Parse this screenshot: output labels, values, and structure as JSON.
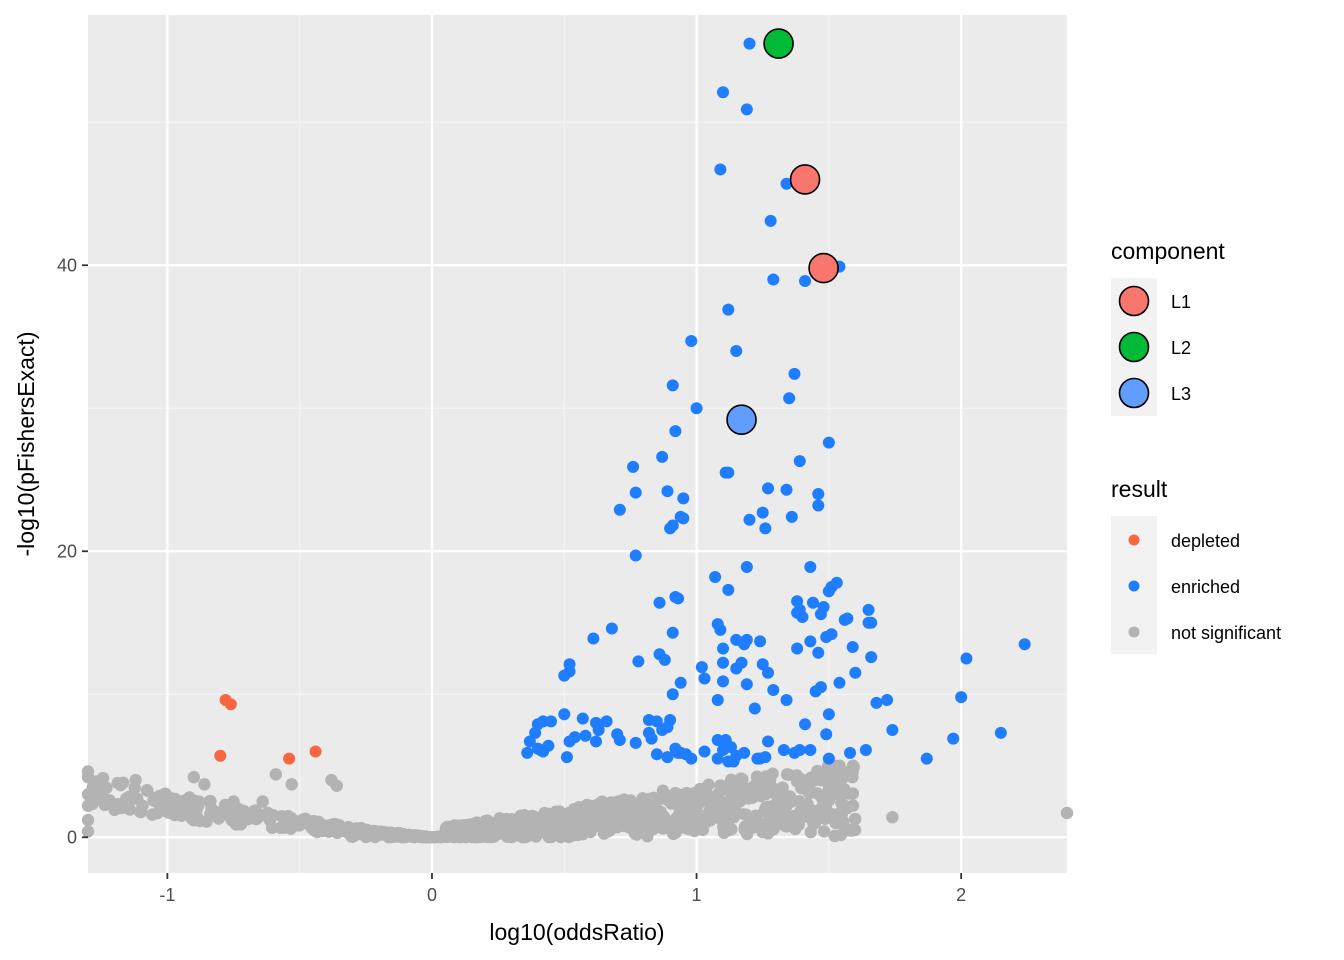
{
  "chart_data": {
    "type": "scatter",
    "title": "",
    "xlabel": "log10(oddsRatio)",
    "ylabel": "-log10(pFishersExact)",
    "xlim": [
      -1.3,
      2.4
    ],
    "ylim": [
      -2.5,
      57.5
    ],
    "x_ticks": [
      -1,
      0,
      1,
      2
    ],
    "x_tick_labels": [
      "-1",
      "0",
      "1",
      "2"
    ],
    "y_ticks": [
      0,
      20,
      40
    ],
    "y_tick_labels": [
      "0",
      "20",
      "40"
    ],
    "grid": true,
    "legends": [
      {
        "title": "component",
        "entries": [
          {
            "label": "L1",
            "color": "#F8766D"
          },
          {
            "label": "L2",
            "color": "#00BA38"
          },
          {
            "label": "L3",
            "color": "#619CFF"
          }
        ]
      },
      {
        "title": "result",
        "entries": [
          {
            "label": "depleted",
            "color": "#F8673F"
          },
          {
            "label": "enriched",
            "color": "#1F7EFF"
          },
          {
            "label": "not significant",
            "color": "#B3B3B3"
          }
        ]
      }
    ],
    "series": [
      {
        "name": "depleted",
        "color": "#F8673F",
        "points": [
          [
            -0.78,
            9.6
          ],
          [
            -0.76,
            9.3
          ],
          [
            -0.8,
            5.7
          ],
          [
            -0.54,
            5.5
          ],
          [
            -0.44,
            6.0
          ]
        ]
      },
      {
        "name": "enriched",
        "color": "#1F7EFF",
        "points": [
          [
            1.2,
            55.5
          ],
          [
            1.1,
            52.1
          ],
          [
            1.19,
            50.9
          ],
          [
            1.09,
            46.7
          ],
          [
            1.34,
            45.7
          ],
          [
            1.28,
            43.1
          ],
          [
            1.54,
            39.9
          ],
          [
            1.29,
            39.0
          ],
          [
            1.41,
            38.9
          ],
          [
            1.12,
            36.9
          ],
          [
            0.98,
            34.7
          ],
          [
            1.15,
            34.0
          ],
          [
            1.37,
            32.4
          ],
          [
            0.91,
            31.6
          ],
          [
            1.35,
            30.7
          ],
          [
            1.0,
            30.0
          ],
          [
            0.92,
            28.4
          ],
          [
            1.5,
            27.6
          ],
          [
            0.87,
            26.6
          ],
          [
            1.39,
            26.3
          ],
          [
            0.76,
            25.9
          ],
          [
            1.11,
            25.5
          ],
          [
            1.12,
            25.5
          ],
          [
            1.27,
            24.4
          ],
          [
            1.34,
            24.3
          ],
          [
            0.77,
            24.1
          ],
          [
            0.89,
            24.2
          ],
          [
            1.46,
            24.0
          ],
          [
            0.95,
            23.7
          ],
          [
            0.71,
            22.9
          ],
          [
            1.46,
            23.2
          ],
          [
            1.25,
            22.7
          ],
          [
            0.94,
            22.4
          ],
          [
            0.95,
            22.3
          ],
          [
            1.2,
            22.2
          ],
          [
            1.36,
            22.4
          ],
          [
            0.91,
            21.8
          ],
          [
            0.9,
            21.6
          ],
          [
            1.26,
            21.6
          ],
          [
            0.77,
            19.7
          ],
          [
            1.43,
            18.9
          ],
          [
            1.19,
            18.9
          ],
          [
            1.07,
            18.2
          ],
          [
            1.53,
            17.8
          ],
          [
            1.51,
            17.5
          ],
          [
            1.12,
            17.3
          ],
          [
            1.5,
            17.2
          ],
          [
            0.93,
            16.7
          ],
          [
            0.86,
            16.4
          ],
          [
            1.38,
            16.5
          ],
          [
            1.44,
            16.4
          ],
          [
            1.48,
            16.1
          ],
          [
            0.92,
            16.8
          ],
          [
            1.39,
            15.9
          ],
          [
            1.38,
            15.7
          ],
          [
            1.65,
            15.9
          ],
          [
            1.47,
            15.6
          ],
          [
            1.4,
            15.4
          ],
          [
            1.56,
            15.2
          ],
          [
            1.57,
            15.3
          ],
          [
            1.66,
            15.0
          ],
          [
            1.08,
            14.9
          ],
          [
            1.09,
            14.5
          ],
          [
            0.68,
            14.6
          ],
          [
            0.91,
            14.3
          ],
          [
            0.61,
            13.9
          ],
          [
            1.51,
            14.2
          ],
          [
            1.49,
            14.0
          ],
          [
            1.15,
            13.8
          ],
          [
            1.19,
            13.8
          ],
          [
            1.24,
            13.7
          ],
          [
            1.43,
            13.7
          ],
          [
            1.18,
            13.5
          ],
          [
            1.38,
            13.2
          ],
          [
            1.59,
            13.3
          ],
          [
            1.1,
            13.2
          ],
          [
            1.46,
            12.9
          ],
          [
            0.86,
            12.8
          ],
          [
            1.66,
            12.6
          ],
          [
            2.02,
            12.5
          ],
          [
            0.78,
            12.3
          ],
          [
            0.88,
            12.4
          ],
          [
            1.1,
            12.2
          ],
          [
            1.17,
            12.2
          ],
          [
            1.25,
            12.1
          ],
          [
            0.52,
            12.1
          ],
          [
            1.02,
            11.9
          ],
          [
            1.15,
            11.8
          ],
          [
            0.52,
            11.6
          ],
          [
            0.5,
            11.3
          ],
          [
            1.27,
            11.5
          ],
          [
            1.03,
            11.1
          ],
          [
            1.6,
            11.5
          ],
          [
            1.1,
            10.9
          ],
          [
            1.19,
            10.7
          ],
          [
            0.94,
            10.8
          ],
          [
            1.29,
            10.3
          ],
          [
            1.47,
            10.5
          ],
          [
            1.54,
            10.8
          ],
          [
            1.45,
            10.2
          ],
          [
            0.91,
            10.0
          ],
          [
            1.34,
            9.6
          ],
          [
            1.72,
            9.6
          ],
          [
            1.68,
            9.4
          ],
          [
            2.0,
            9.8
          ],
          [
            1.08,
            9.6
          ],
          [
            1.22,
            9.0
          ],
          [
            1.5,
            8.6
          ],
          [
            0.85,
            8.1
          ],
          [
            0.9,
            8.2
          ],
          [
            1.41,
            7.9
          ],
          [
            0.62,
            8.0
          ],
          [
            0.5,
            8.6
          ],
          [
            0.57,
            8.3
          ],
          [
            0.66,
            8.1
          ],
          [
            0.89,
            7.7
          ],
          [
            0.4,
            7.9
          ],
          [
            0.42,
            8.1
          ],
          [
            0.45,
            8.1
          ],
          [
            0.39,
            7.3
          ],
          [
            0.82,
            8.2
          ],
          [
            0.87,
            7.5
          ],
          [
            0.63,
            7.5
          ],
          [
            0.82,
            7.3
          ],
          [
            1.74,
            7.5
          ],
          [
            2.15,
            7.3
          ],
          [
            0.62,
            6.7
          ],
          [
            0.52,
            6.7
          ],
          [
            0.71,
            6.8
          ],
          [
            0.83,
            6.9
          ],
          [
            1.08,
            6.8
          ],
          [
            1.11,
            6.8
          ],
          [
            1.27,
            6.7
          ],
          [
            1.49,
            7.2
          ],
          [
            1.97,
            6.9
          ],
          [
            0.37,
            6.7
          ],
          [
            0.58,
            7.1
          ],
          [
            0.7,
            7.2
          ],
          [
            0.54,
            7.0
          ],
          [
            0.44,
            6.4
          ],
          [
            0.41,
            6.1
          ],
          [
            0.36,
            5.9
          ],
          [
            0.4,
            6.2
          ],
          [
            0.42,
            6.0
          ],
          [
            0.77,
            6.6
          ],
          [
            0.92,
            6.2
          ],
          [
            0.85,
            5.8
          ],
          [
            1.1,
            6.1
          ],
          [
            1.03,
            6.0
          ],
          [
            1.13,
            6.3
          ],
          [
            1.18,
            5.9
          ],
          [
            1.15,
            5.7
          ],
          [
            1.37,
            5.9
          ],
          [
            1.33,
            6.1
          ],
          [
            1.39,
            6.1
          ],
          [
            1.64,
            6.1
          ],
          [
            1.58,
            5.9
          ],
          [
            1.5,
            5.5
          ],
          [
            1.87,
            5.5
          ],
          [
            1.23,
            5.5
          ],
          [
            1.24,
            5.5
          ],
          [
            1.26,
            5.6
          ],
          [
            0.51,
            5.6
          ],
          [
            0.93,
            5.9
          ],
          [
            0.89,
            5.6
          ],
          [
            0.96,
            5.8
          ],
          [
            1.08,
            5.5
          ],
          [
            1.12,
            5.3
          ],
          [
            1.14,
            5.3
          ],
          [
            0.98,
            5.5
          ],
          [
            0.94,
            5.9
          ],
          [
            1.65,
            15.0
          ],
          [
            2.24,
            13.5
          ],
          [
            1.43,
            6.1
          ]
        ]
      },
      {
        "name": "component",
        "color": "#000000",
        "points": [
          [
            1.31,
            55.5
          ],
          [
            1.41,
            46.0
          ],
          [
            1.48,
            39.8
          ],
          [
            1.17,
            29.2
          ]
        ]
      }
    ]
  }
}
